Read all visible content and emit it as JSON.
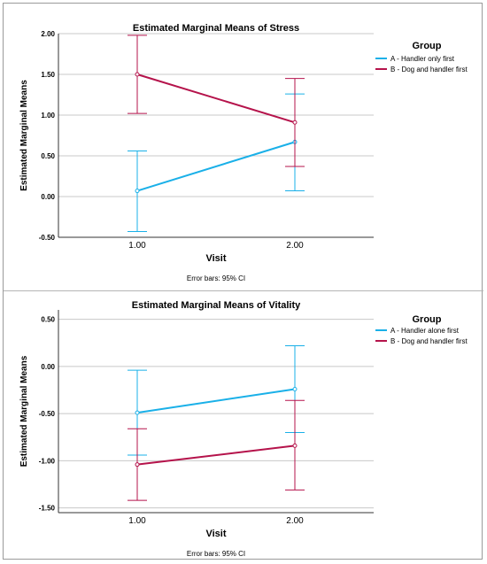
{
  "chart_data": [
    {
      "type": "line",
      "title": "Estimated Marginal Means of Stress",
      "xlabel": "Visit",
      "ylabel": "Estimated Marginal Means",
      "categories": [
        "1.00",
        "2.00"
      ],
      "ylim": [
        -0.5,
        2.0
      ],
      "y_ticks": [
        "2.00",
        "1.50",
        "1.00",
        "0.50",
        "0.00",
        "-0.50"
      ],
      "y_tick_values": [
        2.0,
        1.5,
        1.0,
        0.5,
        0.0,
        -0.5
      ],
      "grid": true,
      "legend_title": "Group",
      "legend_position": "top-right",
      "footnote": "Error bars: 95% CI",
      "series": [
        {
          "name": "A - Handler only first",
          "color": "#1ab0e8",
          "values": [
            0.07,
            0.67
          ],
          "ci_low": [
            -0.43,
            0.07
          ],
          "ci_high": [
            0.56,
            1.26
          ]
        },
        {
          "name": "B - Dog and handler first",
          "color": "#b5134b",
          "values": [
            1.5,
            0.91
          ],
          "ci_low": [
            1.02,
            0.37
          ],
          "ci_high": [
            1.98,
            1.45
          ]
        }
      ]
    },
    {
      "type": "line",
      "title": "Estimated Marginal Means of Vitality",
      "xlabel": "Visit",
      "ylabel": "Estimated Marginal Means",
      "categories": [
        "1.00",
        "2.00"
      ],
      "ylim": [
        -1.55,
        0.6
      ],
      "y_ticks": [
        "0.50",
        "0.00",
        "-0.50",
        "-1.00",
        "-1.50"
      ],
      "y_tick_values": [
        0.5,
        0.0,
        -0.5,
        -1.0,
        -1.5
      ],
      "grid": true,
      "legend_title": "Group",
      "legend_position": "top-right",
      "footnote": "Error bars: 95% CI",
      "series": [
        {
          "name": "A - Handler alone first",
          "color": "#1ab0e8",
          "values": [
            -0.49,
            -0.24
          ],
          "ci_low": [
            -0.94,
            -0.7
          ],
          "ci_high": [
            -0.04,
            0.22
          ]
        },
        {
          "name": "B - Dog and handler first",
          "color": "#b5134b",
          "values": [
            -1.04,
            -0.84
          ],
          "ci_low": [
            -1.42,
            -1.31
          ],
          "ci_high": [
            -0.66,
            -0.36
          ]
        }
      ]
    }
  ]
}
